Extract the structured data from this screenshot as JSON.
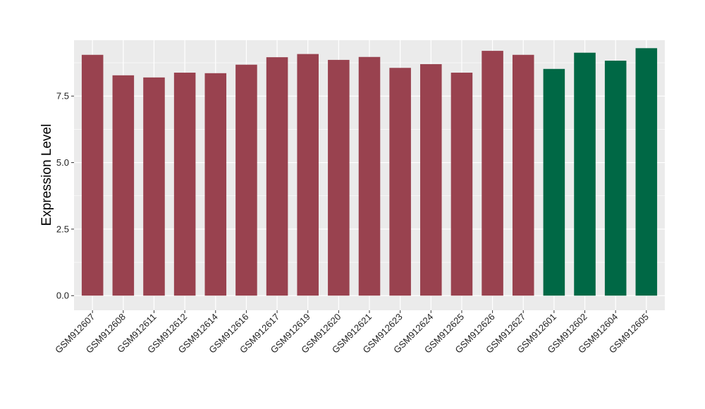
{
  "chart_data": {
    "type": "bar",
    "title": "",
    "xlabel": "",
    "ylabel": "Expression Level",
    "ylim": [
      -0.55,
      9.6
    ],
    "yticks": [
      0.0,
      2.5,
      5.0,
      7.5
    ],
    "ytick_labels": [
      "0.0",
      "2.5",
      "5.0",
      "7.5"
    ],
    "grid": true,
    "legend": "none",
    "categories": [
      "GSM912607",
      "GSM912608",
      "GSM912611",
      "GSM912612",
      "GSM912614",
      "GSM912616",
      "GSM912617",
      "GSM912619",
      "GSM912620",
      "GSM912621",
      "GSM912623",
      "GSM912624",
      "GSM912625",
      "GSM912626",
      "GSM912627",
      "GSM912601",
      "GSM912602",
      "GSM912604",
      "GSM912605"
    ],
    "values": [
      9.05,
      8.28,
      8.2,
      8.38,
      8.36,
      8.68,
      8.96,
      9.08,
      8.86,
      8.97,
      8.56,
      8.7,
      8.38,
      9.2,
      9.05,
      8.52,
      9.13,
      8.83,
      9.3
    ],
    "bar_colors": [
      "#99424f",
      "#99424f",
      "#99424f",
      "#99424f",
      "#99424f",
      "#99424f",
      "#99424f",
      "#99424f",
      "#99424f",
      "#99424f",
      "#99424f",
      "#99424f",
      "#99424f",
      "#99424f",
      "#99424f",
      "#006845",
      "#006845",
      "#006845",
      "#006845"
    ],
    "colors": {
      "panel_background": "#ebebeb",
      "grid": "#ffffff",
      "group_a": "#99424f",
      "group_b": "#006845"
    }
  }
}
